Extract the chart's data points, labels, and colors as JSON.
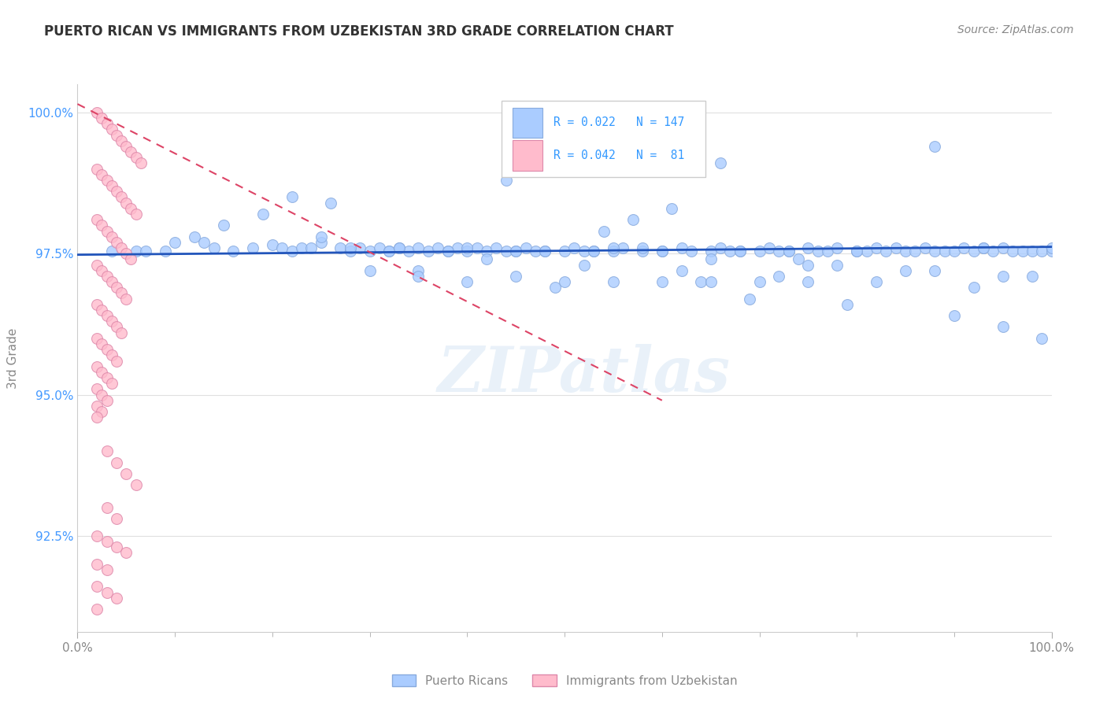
{
  "title": "PUERTO RICAN VS IMMIGRANTS FROM UZBEKISTAN 3RD GRADE CORRELATION CHART",
  "source": "Source: ZipAtlas.com",
  "ylabel": "3rd Grade",
  "xlim": [
    0.0,
    1.0
  ],
  "ylim": [
    0.908,
    1.005
  ],
  "yticks": [
    0.925,
    0.95,
    0.975,
    1.0
  ],
  "ytick_labels": [
    "92.5%",
    "95.0%",
    "97.5%",
    "100.0%"
  ],
  "xtick_labels": [
    "0.0%",
    "100.0%"
  ],
  "blue_scatter_x": [
    0.035,
    0.06,
    0.07,
    0.09,
    0.1,
    0.12,
    0.13,
    0.14,
    0.16,
    0.18,
    0.2,
    0.21,
    0.22,
    0.23,
    0.24,
    0.25,
    0.27,
    0.28,
    0.29,
    0.3,
    0.31,
    0.32,
    0.33,
    0.34,
    0.36,
    0.37,
    0.38,
    0.39,
    0.4,
    0.41,
    0.42,
    0.43,
    0.44,
    0.45,
    0.46,
    0.47,
    0.48,
    0.5,
    0.51,
    0.52,
    0.53,
    0.55,
    0.56,
    0.58,
    0.6,
    0.62,
    0.63,
    0.65,
    0.66,
    0.67,
    0.68,
    0.7,
    0.71,
    0.72,
    0.73,
    0.75,
    0.76,
    0.77,
    0.78,
    0.8,
    0.81,
    0.82,
    0.83,
    0.84,
    0.85,
    0.86,
    0.87,
    0.88,
    0.89,
    0.9,
    0.91,
    0.92,
    0.93,
    0.94,
    0.95,
    0.96,
    0.97,
    0.98,
    0.99,
    1.0,
    0.15,
    0.19,
    0.26,
    0.35,
    0.49,
    0.54,
    0.57,
    0.61,
    0.64,
    0.69,
    0.74,
    0.79,
    0.9,
    0.95,
    0.99,
    0.3,
    0.35,
    0.4,
    0.45,
    0.5,
    0.55,
    0.6,
    0.65,
    0.7,
    0.75,
    0.32,
    0.42,
    0.52,
    0.62,
    0.72,
    0.82,
    0.92,
    0.25,
    0.35,
    0.45,
    0.55,
    0.65,
    0.75,
    0.85,
    0.95,
    0.28,
    0.38,
    0.48,
    0.58,
    0.68,
    0.78,
    0.88,
    0.98,
    0.22,
    0.44,
    0.66,
    0.88,
    0.4,
    0.6,
    0.8,
    1.0,
    0.33,
    0.53,
    0.73,
    0.93
  ],
  "blue_scatter_y": [
    0.9755,
    0.9755,
    0.9755,
    0.9755,
    0.977,
    0.978,
    0.977,
    0.976,
    0.9755,
    0.976,
    0.9765,
    0.976,
    0.9755,
    0.976,
    0.976,
    0.977,
    0.976,
    0.9755,
    0.976,
    0.9755,
    0.976,
    0.9755,
    0.976,
    0.9755,
    0.9755,
    0.976,
    0.9755,
    0.976,
    0.9755,
    0.976,
    0.9755,
    0.976,
    0.9755,
    0.9755,
    0.976,
    0.9755,
    0.9755,
    0.9755,
    0.976,
    0.9755,
    0.9755,
    0.9755,
    0.976,
    0.9755,
    0.9755,
    0.976,
    0.9755,
    0.9755,
    0.976,
    0.9755,
    0.9755,
    0.9755,
    0.976,
    0.9755,
    0.9755,
    0.976,
    0.9755,
    0.9755,
    0.976,
    0.9755,
    0.9755,
    0.976,
    0.9755,
    0.976,
    0.9755,
    0.9755,
    0.976,
    0.9755,
    0.9755,
    0.9755,
    0.976,
    0.9755,
    0.976,
    0.9755,
    0.976,
    0.9755,
    0.9755,
    0.9755,
    0.9755,
    0.9755,
    0.98,
    0.982,
    0.984,
    0.972,
    0.969,
    0.979,
    0.981,
    0.983,
    0.97,
    0.967,
    0.974,
    0.966,
    0.964,
    0.962,
    0.96,
    0.972,
    0.971,
    0.97,
    0.971,
    0.97,
    0.97,
    0.97,
    0.97,
    0.97,
    0.97,
    0.9755,
    0.974,
    0.973,
    0.972,
    0.971,
    0.97,
    0.969,
    0.978,
    0.976,
    0.9755,
    0.976,
    0.974,
    0.973,
    0.972,
    0.971,
    0.976,
    0.9755,
    0.9755,
    0.976,
    0.9755,
    0.973,
    0.972,
    0.971,
    0.985,
    0.988,
    0.991,
    0.994,
    0.976,
    0.9755,
    0.9755,
    0.976,
    0.976,
    0.9755,
    0.9755,
    0.976
  ],
  "pink_scatter_x": [
    0.02,
    0.025,
    0.03,
    0.035,
    0.04,
    0.045,
    0.05,
    0.055,
    0.06,
    0.065,
    0.02,
    0.025,
    0.03,
    0.035,
    0.04,
    0.045,
    0.05,
    0.055,
    0.06,
    0.02,
    0.025,
    0.03,
    0.035,
    0.04,
    0.045,
    0.05,
    0.055,
    0.02,
    0.025,
    0.03,
    0.035,
    0.04,
    0.045,
    0.05,
    0.02,
    0.025,
    0.03,
    0.035,
    0.04,
    0.045,
    0.02,
    0.025,
    0.03,
    0.035,
    0.04,
    0.02,
    0.025,
    0.03,
    0.035,
    0.02,
    0.025,
    0.03,
    0.02,
    0.025,
    0.02,
    0.03,
    0.04,
    0.05,
    0.06,
    0.03,
    0.04,
    0.02,
    0.03,
    0.04,
    0.05,
    0.02,
    0.03,
    0.02,
    0.03,
    0.04,
    0.02
  ],
  "pink_scatter_y": [
    1.0,
    0.999,
    0.998,
    0.997,
    0.996,
    0.995,
    0.994,
    0.993,
    0.992,
    0.991,
    0.99,
    0.989,
    0.988,
    0.987,
    0.986,
    0.985,
    0.984,
    0.983,
    0.982,
    0.981,
    0.98,
    0.979,
    0.978,
    0.977,
    0.976,
    0.975,
    0.974,
    0.973,
    0.972,
    0.971,
    0.97,
    0.969,
    0.968,
    0.967,
    0.966,
    0.965,
    0.964,
    0.963,
    0.962,
    0.961,
    0.96,
    0.959,
    0.958,
    0.957,
    0.956,
    0.955,
    0.954,
    0.953,
    0.952,
    0.951,
    0.95,
    0.949,
    0.948,
    0.947,
    0.946,
    0.94,
    0.938,
    0.936,
    0.934,
    0.93,
    0.928,
    0.925,
    0.924,
    0.923,
    0.922,
    0.92,
    0.919,
    0.916,
    0.915,
    0.914,
    0.912
  ],
  "blue_line_x": [
    0.0,
    1.0
  ],
  "blue_line_y": [
    0.9748,
    0.9762
  ],
  "pink_line_x": [
    0.0,
    0.6
  ],
  "pink_line_y": [
    1.0015,
    0.949
  ],
  "watermark_text": "ZIPatlas",
  "scatter_size": 100,
  "blue_color": "#aaccff",
  "pink_color": "#ffbbcc",
  "blue_edge": "#88aadd",
  "pink_edge": "#dd88aa",
  "blue_line_color": "#2255bb",
  "pink_line_color": "#dd4466",
  "background_color": "#ffffff",
  "grid_color": "#e0e0e0",
  "title_color": "#333333",
  "source_color": "#888888",
  "axis_tick_color": "#4499ff",
  "legend_text_color": "#3399ff",
  "label_color": "#888888"
}
